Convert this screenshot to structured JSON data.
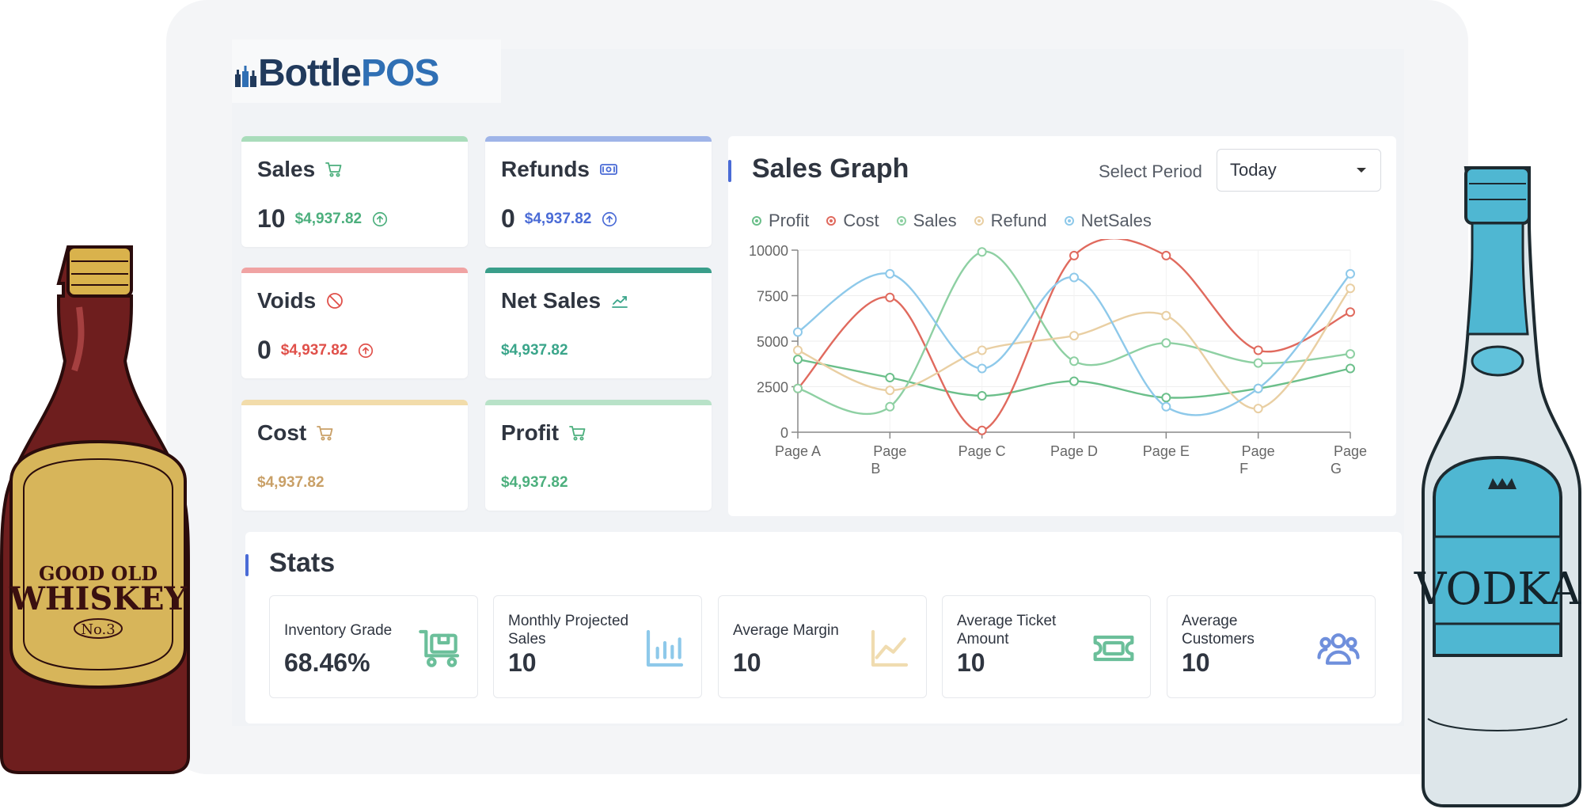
{
  "brand": {
    "name_part1": "Bottle",
    "name_part2": "POS"
  },
  "cards": [
    {
      "title": "Sales",
      "count": "10",
      "amount": "$4,937.82",
      "accent": "#a9dcbb",
      "amount_color": "#4caf7d",
      "icon": "cart-icon",
      "trend_icon": "arrow-up-circle-icon"
    },
    {
      "title": "Refunds",
      "count": "0",
      "amount": "$4,937.82",
      "accent": "#9fb4e8",
      "amount_color": "#4a6bd6",
      "icon": "cash-icon",
      "trend_icon": "arrow-up-circle-icon"
    },
    {
      "title": "Voids",
      "count": "0",
      "amount": "$4,937.82",
      "accent": "#f0a3a3",
      "amount_color": "#e0504a",
      "icon": "ban-icon",
      "trend_icon": "arrow-up-circle-icon"
    },
    {
      "title": "Net Sales",
      "count": "",
      "amount": "$4,937.82",
      "accent": "#3a9e8a",
      "amount_color": "#3aa58a",
      "icon": "trend-icon",
      "trend_icon": ""
    },
    {
      "title": "Cost",
      "count": "",
      "amount": "$4,937.82",
      "accent": "#f2dcaa",
      "amount_color": "#c9a067",
      "icon": "cart-icon",
      "trend_icon": ""
    },
    {
      "title": "Profit",
      "count": "",
      "amount": "$4,937.82",
      "accent": "#b8e2c8",
      "amount_color": "#4caf7d",
      "icon": "cart-icon",
      "trend_icon": ""
    }
  ],
  "graph": {
    "title": "Sales Graph",
    "period_label": "Select Period",
    "period_value": "Today"
  },
  "chart_data": {
    "type": "line",
    "categories": [
      "Page A",
      "Page B",
      "Page C",
      "Page D",
      "Page E",
      "Page F",
      "Page G"
    ],
    "category_lines": [
      [
        "Page A"
      ],
      [
        "Page",
        "B"
      ],
      [
        "Page C"
      ],
      [
        "Page D"
      ],
      [
        "Page E"
      ],
      [
        "Page",
        "F"
      ],
      [
        "Page",
        "G"
      ]
    ],
    "ylim": [
      0,
      10000
    ],
    "yticks": [
      "0",
      "2500",
      "5000",
      "7500",
      "10000"
    ],
    "smooth": true,
    "legend_position": "top",
    "series": [
      {
        "name": "Profit",
        "color": "#6bbf8a",
        "values": [
          4000,
          3000,
          2000,
          2800,
          1900,
          2400,
          3500
        ]
      },
      {
        "name": "Cost",
        "color": "#e06a5e",
        "values": [
          2400,
          7400,
          100,
          9700,
          9700,
          4500,
          6600
        ]
      },
      {
        "name": "Sales",
        "color": "#8ed0a3",
        "values": [
          2400,
          1400,
          9900,
          3900,
          4900,
          3800,
          4300
        ]
      },
      {
        "name": "Refund",
        "color": "#e9cfa3",
        "values": [
          4500,
          2300,
          4500,
          5300,
          6400,
          1300,
          7900
        ]
      },
      {
        "name": "NetSales",
        "color": "#8ec9ea",
        "values": [
          5500,
          8700,
          3500,
          8500,
          1400,
          2400,
          8700
        ]
      }
    ]
  },
  "stats": {
    "title": "Stats",
    "items": [
      {
        "label": "Inventory Grade",
        "value": "68.46%",
        "icon": "cart-box-icon",
        "color": "#6bbf9a"
      },
      {
        "label": "Monthly Projected Sales",
        "value": "10",
        "icon": "bar-chart-icon",
        "color": "#8ec9ea"
      },
      {
        "label": "Average Margin",
        "value": "10",
        "icon": "area-chart-icon",
        "color": "#f0dcb0"
      },
      {
        "label": "Average Ticket Amount",
        "value": "10",
        "icon": "ticket-icon",
        "color": "#6bbf9a"
      },
      {
        "label": "Average Customers",
        "value": "10",
        "icon": "users-icon",
        "color": "#6f8fdc"
      }
    ]
  },
  "bottles": {
    "whiskey": {
      "line1": "GOOD OLD",
      "line2": "WHISKEY",
      "line3": "No.3"
    },
    "vodka": {
      "label": "VODKA"
    }
  }
}
